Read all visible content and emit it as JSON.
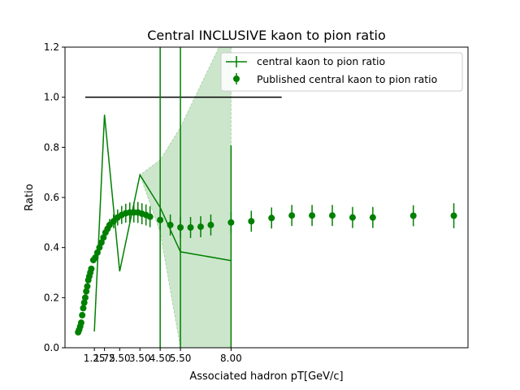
{
  "chart_data": {
    "type": "line",
    "title": "Central INCLUSIVE kaon to pion ratio",
    "xlabel": "Associated hadron pT[GeV/c]",
    "ylabel": "Ratio",
    "xlim": [
      -0.2,
      19.7
    ],
    "ylim": [
      0,
      1.2
    ],
    "x_ticks": [
      1.25,
      1.75,
      2.5,
      3.5,
      4.5,
      5.5,
      8.0
    ],
    "x_tick_labels": [
      "1.25",
      "1.75",
      "2.50",
      "3.50",
      "4.50",
      "5.50",
      "8.00"
    ],
    "y_ticks": [
      0.0,
      0.2,
      0.4,
      0.6,
      0.8,
      1.0,
      1.2
    ],
    "y_tick_labels": [
      "0.0",
      "0.2",
      "0.4",
      "0.6",
      "0.8",
      "1.0",
      "1.2"
    ],
    "grid": false,
    "legend_position": "top-right",
    "reference_line": {
      "y": 1.0,
      "x_start": 0.8,
      "x_end": 10.5,
      "color": "#000000"
    },
    "series": [
      {
        "name": "central kaon to pion ratio",
        "style": "line-errorbar",
        "color": "#008000",
        "band_color": "#008000",
        "x": [
          1.25,
          1.75,
          2.5,
          3.5,
          4.5,
          5.5,
          8.0
        ],
        "y": [
          0.065,
          0.93,
          0.305,
          0.69,
          0.56,
          0.383,
          0.348
        ],
        "yerr": [
          0.0,
          0.0,
          0.0,
          0.0,
          1.2,
          1.2,
          0.46
        ],
        "band_low": [
          0.065,
          0.93,
          0.305,
          0.69,
          0.46,
          0.0,
          0.0
        ],
        "band_high": [
          0.065,
          0.93,
          0.305,
          0.69,
          0.75,
          0.88,
          1.3
        ]
      },
      {
        "name": "Published central kaon to pion ratio",
        "style": "marker-errorbar",
        "color": "#008000",
        "x": [
          0.45,
          0.5,
          0.55,
          0.6,
          0.65,
          0.7,
          0.75,
          0.8,
          0.85,
          0.9,
          0.95,
          1.0,
          1.05,
          1.1,
          1.2,
          1.3,
          1.4,
          1.5,
          1.6,
          1.7,
          1.8,
          1.9,
          2.0,
          2.2,
          2.4,
          2.6,
          2.8,
          3.0,
          3.2,
          3.4,
          3.6,
          3.8,
          4.0,
          4.5,
          5.0,
          5.5,
          6.0,
          6.5,
          7.0,
          8.0,
          9.0,
          10.0,
          11.0,
          12.0,
          13.0,
          14.0,
          15.0,
          17.0,
          19.0
        ],
        "y": [
          0.062,
          0.072,
          0.085,
          0.1,
          0.13,
          0.158,
          0.18,
          0.2,
          0.225,
          0.245,
          0.27,
          0.285,
          0.3,
          0.315,
          0.35,
          0.36,
          0.38,
          0.4,
          0.42,
          0.44,
          0.46,
          0.475,
          0.49,
          0.505,
          0.52,
          0.53,
          0.537,
          0.54,
          0.54,
          0.54,
          0.535,
          0.53,
          0.523,
          0.51,
          0.49,
          0.48,
          0.48,
          0.483,
          0.49,
          0.5,
          0.505,
          0.518,
          0.528,
          0.528,
          0.528,
          0.52,
          0.52,
          0.527,
          0.527
        ],
        "yerr": [
          0.008,
          0.008,
          0.008,
          0.008,
          0.008,
          0.008,
          0.008,
          0.009,
          0.009,
          0.009,
          0.01,
          0.01,
          0.01,
          0.012,
          0.012,
          0.013,
          0.014,
          0.015,
          0.016,
          0.018,
          0.02,
          0.022,
          0.024,
          0.028,
          0.032,
          0.036,
          0.038,
          0.04,
          0.04,
          0.042,
          0.042,
          0.042,
          0.042,
          0.042,
          0.042,
          0.042,
          0.042,
          0.042,
          0.042,
          0.042,
          0.042,
          0.042,
          0.042,
          0.042,
          0.042,
          0.042,
          0.042,
          0.042,
          0.05
        ]
      }
    ]
  }
}
